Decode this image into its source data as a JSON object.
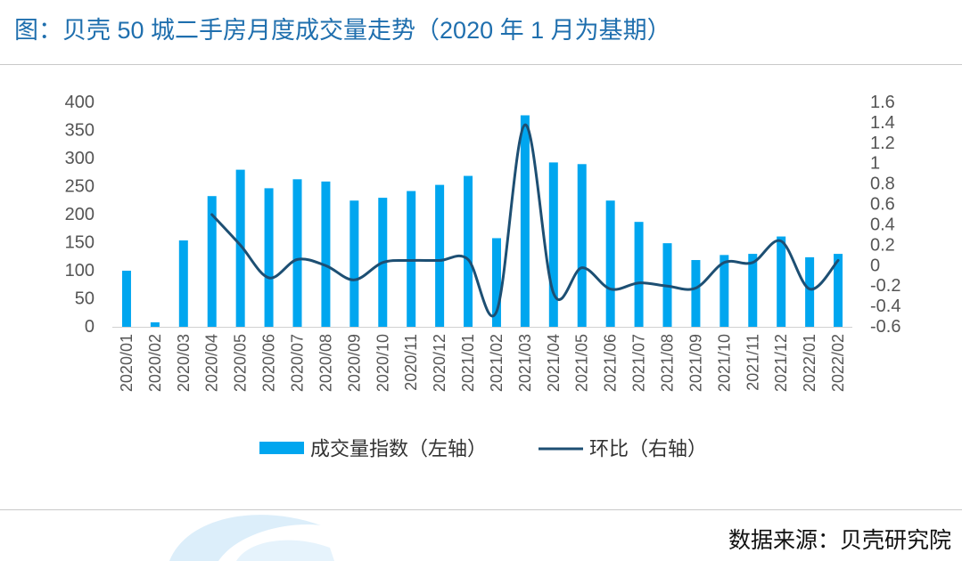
{
  "title": "图：贝壳 50 城二手房月度成交量走势（2020 年 1 月为基期）",
  "source": "数据来源：贝壳研究院",
  "colors": {
    "bar": "#00a6ef",
    "line": "#1d4f73",
    "title": "#1f6fae"
  },
  "chart_data": {
    "type": "bar+line",
    "categories": [
      "2020/01",
      "2020/02",
      "2020/03",
      "2020/04",
      "2020/05",
      "2020/06",
      "2020/07",
      "2020/08",
      "2020/09",
      "2020/10",
      "2020/11",
      "2020/12",
      "2021/01",
      "2021/02",
      "2021/03",
      "2021/04",
      "2021/05",
      "2021/06",
      "2021/07",
      "2021/08",
      "2021/09",
      "2021/10",
      "2021/11",
      "2021/12",
      "2022/01",
      "2022/02"
    ],
    "series": [
      {
        "name": "成交量指数（左轴）",
        "type": "bar",
        "axis": "left",
        "values": [
          100,
          8,
          154,
          233,
          280,
          247,
          263,
          259,
          225,
          230,
          242,
          253,
          269,
          158,
          377,
          293,
          290,
          225,
          187,
          149,
          119,
          128,
          130,
          161,
          124,
          130
        ]
      },
      {
        "name": "环比（右轴）",
        "type": "line",
        "axis": "right",
        "values": [
          null,
          null,
          null,
          0.5,
          0.2,
          -0.12,
          0.06,
          0.0,
          -0.14,
          0.03,
          0.05,
          0.05,
          0.06,
          -0.45,
          1.38,
          -0.27,
          -0.02,
          -0.23,
          -0.17,
          -0.2,
          -0.22,
          0.03,
          0.03,
          0.24,
          -0.23,
          0.05
        ]
      }
    ],
    "y_left": {
      "min": 0,
      "max": 400,
      "ticks": [
        "0",
        "50",
        "100",
        "150",
        "200",
        "250",
        "300",
        "350",
        "400"
      ]
    },
    "y_right": {
      "min": -0.6,
      "max": 1.6,
      "ticks": [
        "-0.6",
        "-0.4",
        "-0.2",
        "0",
        "0.2",
        "0.4",
        "0.6",
        "0.8",
        "1",
        "1.2",
        "1.4",
        "1.6"
      ]
    },
    "grid": false,
    "legend_position": "bottom"
  }
}
